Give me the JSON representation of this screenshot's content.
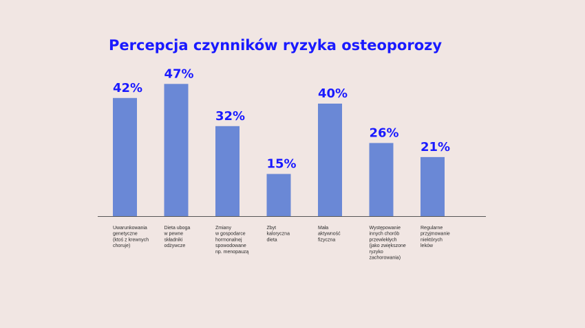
{
  "chart_data": {
    "type": "bar",
    "title": "Percepcja czynników ryzyka osteoporozy",
    "xlabel": "",
    "ylabel": "",
    "ylim": [
      0,
      54
    ],
    "grid": false,
    "legend": "none",
    "categories": [
      [
        "Uwarunkowania",
        "genetyczne",
        "(ktoś z krewnych",
        "choruje)"
      ],
      [
        "Dieta uboga",
        "w pewne",
        "składniki",
        "odżywcze"
      ],
      [
        "Zmiany",
        "w gospodarce",
        "hormonalnej",
        "spowodowane",
        "np. menopauzą"
      ],
      [
        "Zbyt",
        "kaloryczna",
        "dieta"
      ],
      [
        "Mała",
        "aktywność",
        "fizyczna"
      ],
      [
        "Występowanie",
        "innych chorób",
        "przewlekłych",
        "(jako zwiększone",
        "ryzyko",
        "zachorowania)"
      ],
      [
        "Regularne",
        "przyjmowanie",
        "niektórych",
        "leków"
      ]
    ],
    "values": [
      42,
      47,
      32,
      15,
      40,
      26,
      21
    ],
    "value_labels": [
      "42%",
      "47%",
      "32%",
      "15%",
      "40%",
      "26%",
      "21%"
    ],
    "colors": {
      "bar": "#6a88d6",
      "accent": "#1a1aff",
      "background": "#f1e6e3"
    }
  }
}
